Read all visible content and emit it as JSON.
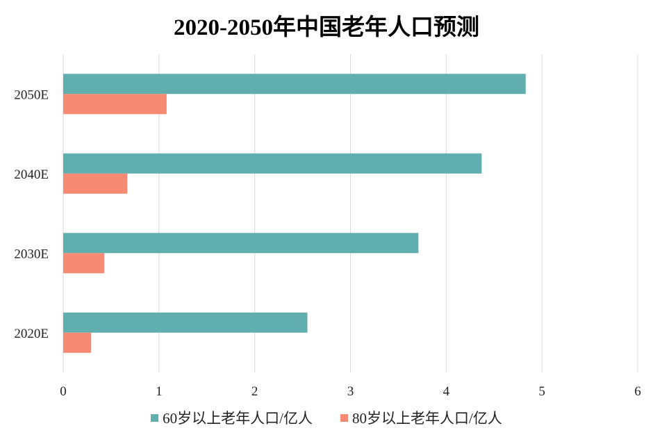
{
  "chart_data": {
    "type": "bar",
    "orientation": "horizontal",
    "title": "2020-2050年中国老年人口预测",
    "categories": [
      "2020E",
      "2030E",
      "2040E",
      "2050E"
    ],
    "series": [
      {
        "name": "60岁以上老年人口/亿人",
        "color": "#61aeae",
        "values": [
          2.55,
          3.71,
          4.37,
          4.83
        ]
      },
      {
        "name": "80岁以上老年人口/亿人",
        "color": "#f78a72",
        "values": [
          0.29,
          0.43,
          0.67,
          1.08
        ]
      }
    ],
    "xlim": [
      0,
      6
    ],
    "xticks": [
      "0",
      "1",
      "2",
      "3",
      "4",
      "5",
      "6"
    ],
    "xlabel": "",
    "ylabel": "",
    "grid": "vertical",
    "legend_position": "bottom"
  }
}
